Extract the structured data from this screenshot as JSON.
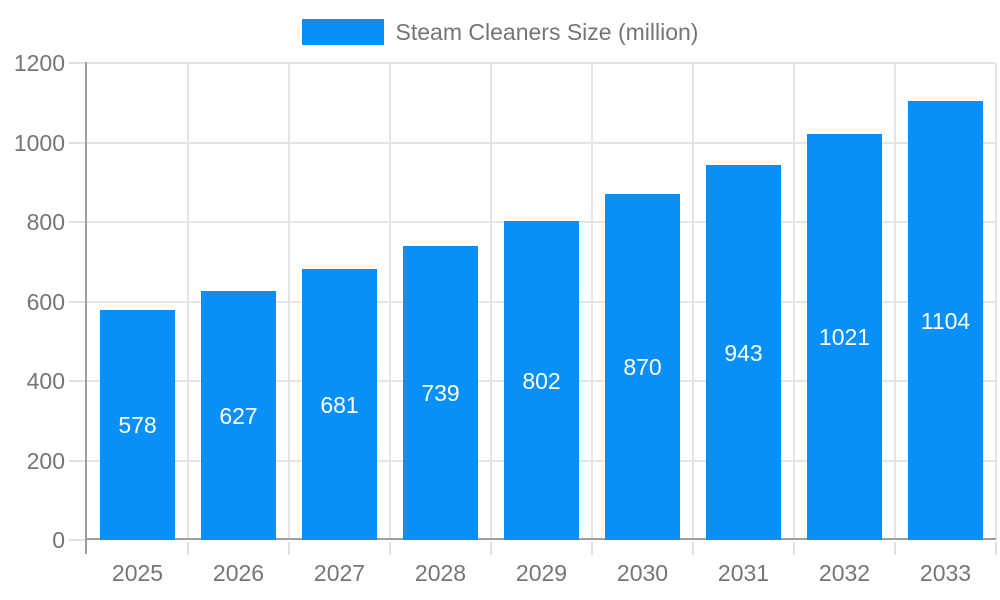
{
  "legend": {
    "items": [
      {
        "label": "Steam Cleaners Size (million)",
        "color": "#0890f8"
      }
    ],
    "position": "top-center"
  },
  "colors": {
    "bar": "#0890f8",
    "bar_label": "#ffffff",
    "axis_line": "#9e9e9e",
    "gridline": "#e5e5e5",
    "tick": "#e0e0e0",
    "axis_text": "#757575",
    "background": "#ffffff"
  },
  "chart_data": {
    "type": "bar",
    "title": "Steam Cleaners Size (million)",
    "categories": [
      "2025",
      "2026",
      "2027",
      "2028",
      "2029",
      "2030",
      "2031",
      "2032",
      "2033"
    ],
    "series": [
      {
        "name": "Steam Cleaners Size (million)",
        "values": [
          578,
          627,
          681,
          739,
          802,
          870,
          943,
          1021,
          1104
        ]
      }
    ],
    "values": [
      578,
      627,
      681,
      739,
      802,
      870,
      943,
      1021,
      1104
    ],
    "bar_labels": [
      "578",
      "627",
      "681",
      "739",
      "802",
      "870",
      "943",
      "1021",
      "1104"
    ],
    "xlabel": "",
    "ylabel": "",
    "ylim": [
      0,
      1200
    ],
    "yticks": [
      0,
      200,
      400,
      600,
      800,
      1000,
      1200
    ],
    "ytick_labels": [
      "0",
      "200",
      "400",
      "600",
      "800",
      "1000",
      "1200"
    ],
    "grid": true,
    "legend_position": "top-center",
    "bar_labels_visible": true,
    "bar_label_position": "center-of-bar"
  }
}
